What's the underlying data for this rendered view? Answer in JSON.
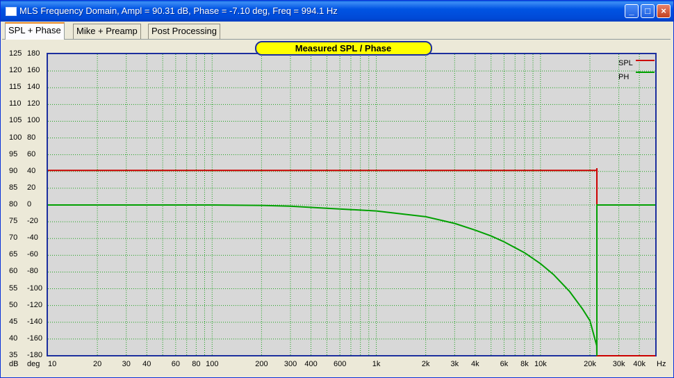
{
  "window": {
    "title": "MLS Frequency Domain, Ampl = 90.31 dB, Phase = -7.10 deg, Freq = 994.1 Hz",
    "buttons": {
      "minimize": "_",
      "maximize": "□",
      "close": "×"
    }
  },
  "tabs": [
    {
      "label": "SPL + Phase",
      "active": true
    },
    {
      "label": "Mike + Preamp",
      "active": false
    },
    {
      "label": "Post Processing",
      "active": false
    }
  ],
  "chart_data": {
    "type": "line",
    "title": "Measured SPL / Phase",
    "x_scale": "log",
    "xlim": [
      10,
      50000
    ],
    "x_unit": "Hz",
    "x_tick_labels": [
      {
        "v": 10,
        "t": "10"
      },
      {
        "v": 20,
        "t": "20"
      },
      {
        "v": 30,
        "t": "30"
      },
      {
        "v": 40,
        "t": "40"
      },
      {
        "v": 60,
        "t": "60"
      },
      {
        "v": 80,
        "t": "80"
      },
      {
        "v": 100,
        "t": "100"
      },
      {
        "v": 200,
        "t": "200"
      },
      {
        "v": 300,
        "t": "300"
      },
      {
        "v": 400,
        "t": "400"
      },
      {
        "v": 600,
        "t": "600"
      },
      {
        "v": 1000,
        "t": "1k"
      },
      {
        "v": 2000,
        "t": "2k"
      },
      {
        "v": 3000,
        "t": "3k"
      },
      {
        "v": 4000,
        "t": "4k"
      },
      {
        "v": 6000,
        "t": "6k"
      },
      {
        "v": 8000,
        "t": "8k"
      },
      {
        "v": 10000,
        "t": "10k"
      },
      {
        "v": 20000,
        "t": "20k"
      },
      {
        "v": 30000,
        "t": "30k"
      },
      {
        "v": 40000,
        "t": "40k"
      }
    ],
    "y_left": {
      "unit": "dB",
      "range": [
        35,
        125
      ],
      "ticks": [
        125,
        120,
        115,
        110,
        105,
        100,
        95,
        90,
        85,
        80,
        75,
        70,
        65,
        60,
        55,
        50,
        45,
        40,
        35
      ]
    },
    "y_right": {
      "unit": "deg",
      "range": [
        -180,
        180
      ],
      "ticks": [
        180,
        160,
        140,
        120,
        100,
        80,
        60,
        40,
        20,
        0,
        -20,
        -40,
        -60,
        -80,
        -100,
        -120,
        -140,
        -160,
        -180
      ]
    },
    "legend_position": "top-right",
    "grid": true,
    "series": [
      {
        "name": "SPL",
        "color": "#cc0000",
        "axis": "dB",
        "x": [
          10,
          100,
          1000,
          10000,
          22000,
          22050,
          22050,
          50000
        ],
        "y": [
          90.3,
          90.3,
          90.3,
          90.3,
          90.3,
          91.0,
          35,
          35
        ]
      },
      {
        "name": "PH",
        "color": "#00a000",
        "axis": "deg",
        "x": [
          10,
          100,
          200,
          300,
          500,
          1000,
          2000,
          3000,
          4000,
          5000,
          6000,
          8000,
          10000,
          12000,
          15000,
          18000,
          20000,
          22000,
          22050,
          22050,
          50000
        ],
        "y": [
          0,
          0,
          -0.5,
          -1.5,
          -4,
          -7.1,
          -14,
          -22,
          -30,
          -37,
          -44,
          -57,
          -70,
          -83,
          -103,
          -124,
          -138,
          -168,
          -180,
          0,
          0
        ]
      }
    ]
  }
}
